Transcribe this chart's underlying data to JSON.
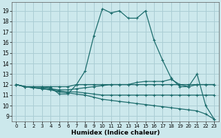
{
  "xlabel": "Humidex (Indice chaleur)",
  "bg_color": "#cce8ec",
  "grid_color": "#aacdd4",
  "line_color": "#1a6b6b",
  "xlim": [
    -0.5,
    23.5
  ],
  "ylim": [
    8.5,
    19.8
  ],
  "yticks": [
    9,
    10,
    11,
    12,
    13,
    14,
    15,
    16,
    17,
    18,
    19
  ],
  "xticks": [
    0,
    1,
    2,
    3,
    4,
    5,
    6,
    7,
    8,
    9,
    10,
    11,
    12,
    13,
    14,
    15,
    16,
    17,
    18,
    19,
    20,
    21,
    22,
    23
  ],
  "series": [
    {
      "x": [
        0,
        1,
        2,
        3,
        4,
        5,
        6,
        7,
        8,
        9,
        10,
        11,
        12,
        13,
        14,
        15,
        16,
        17,
        18,
        19,
        20,
        21,
        22,
        23
      ],
      "y": [
        12.0,
        11.8,
        11.8,
        11.8,
        11.7,
        11.1,
        11.1,
        12.0,
        13.3,
        16.6,
        19.2,
        18.8,
        19.0,
        18.3,
        18.3,
        19.0,
        16.2,
        14.3,
        12.6,
        11.8,
        11.8,
        13.0,
        10.0,
        8.7
      ]
    },
    {
      "x": [
        0,
        1,
        2,
        3,
        4,
        5,
        6,
        7,
        8,
        9,
        10,
        11,
        12,
        13,
        14,
        15,
        16,
        17,
        18,
        19,
        20,
        21,
        22,
        23
      ],
      "y": [
        12.0,
        11.8,
        11.8,
        11.8,
        11.8,
        11.8,
        11.8,
        12.0,
        12.0,
        12.0,
        12.0,
        12.0,
        12.0,
        12.0,
        12.2,
        12.3,
        12.3,
        12.3,
        12.5,
        12.0,
        11.8,
        12.0,
        12.0,
        12.0
      ]
    },
    {
      "x": [
        0,
        1,
        2,
        3,
        4,
        5,
        6,
        7,
        8,
        9,
        10,
        11,
        12,
        13,
        14,
        15,
        16,
        17,
        18,
        19,
        20,
        21,
        22,
        23
      ],
      "y": [
        12.0,
        11.8,
        11.7,
        11.7,
        11.6,
        11.5,
        11.5,
        11.6,
        11.7,
        11.8,
        11.9,
        12.0,
        12.0,
        12.0,
        12.0,
        12.0,
        12.0,
        12.0,
        12.0,
        12.0,
        12.0,
        12.0,
        12.0,
        12.0
      ]
    },
    {
      "x": [
        0,
        1,
        2,
        3,
        4,
        5,
        6,
        7,
        8,
        9,
        10,
        11,
        12,
        13,
        14,
        15,
        16,
        17,
        18,
        19,
        20,
        21,
        22,
        23
      ],
      "y": [
        12.0,
        11.8,
        11.7,
        11.6,
        11.5,
        11.4,
        11.3,
        11.3,
        11.2,
        11.1,
        11.0,
        11.0,
        11.0,
        11.0,
        11.0,
        11.0,
        11.0,
        11.0,
        11.0,
        11.0,
        11.0,
        11.0,
        11.0,
        11.0
      ]
    },
    {
      "x": [
        0,
        1,
        2,
        3,
        4,
        5,
        6,
        7,
        8,
        9,
        10,
        11,
        12,
        13,
        14,
        15,
        16,
        17,
        18,
        19,
        20,
        21,
        22,
        23
      ],
      "y": [
        12.0,
        11.8,
        11.7,
        11.6,
        11.5,
        11.3,
        11.2,
        11.1,
        11.0,
        10.8,
        10.6,
        10.5,
        10.4,
        10.3,
        10.2,
        10.1,
        10.0,
        9.9,
        9.8,
        9.7,
        9.6,
        9.5,
        9.2,
        8.7
      ]
    }
  ]
}
